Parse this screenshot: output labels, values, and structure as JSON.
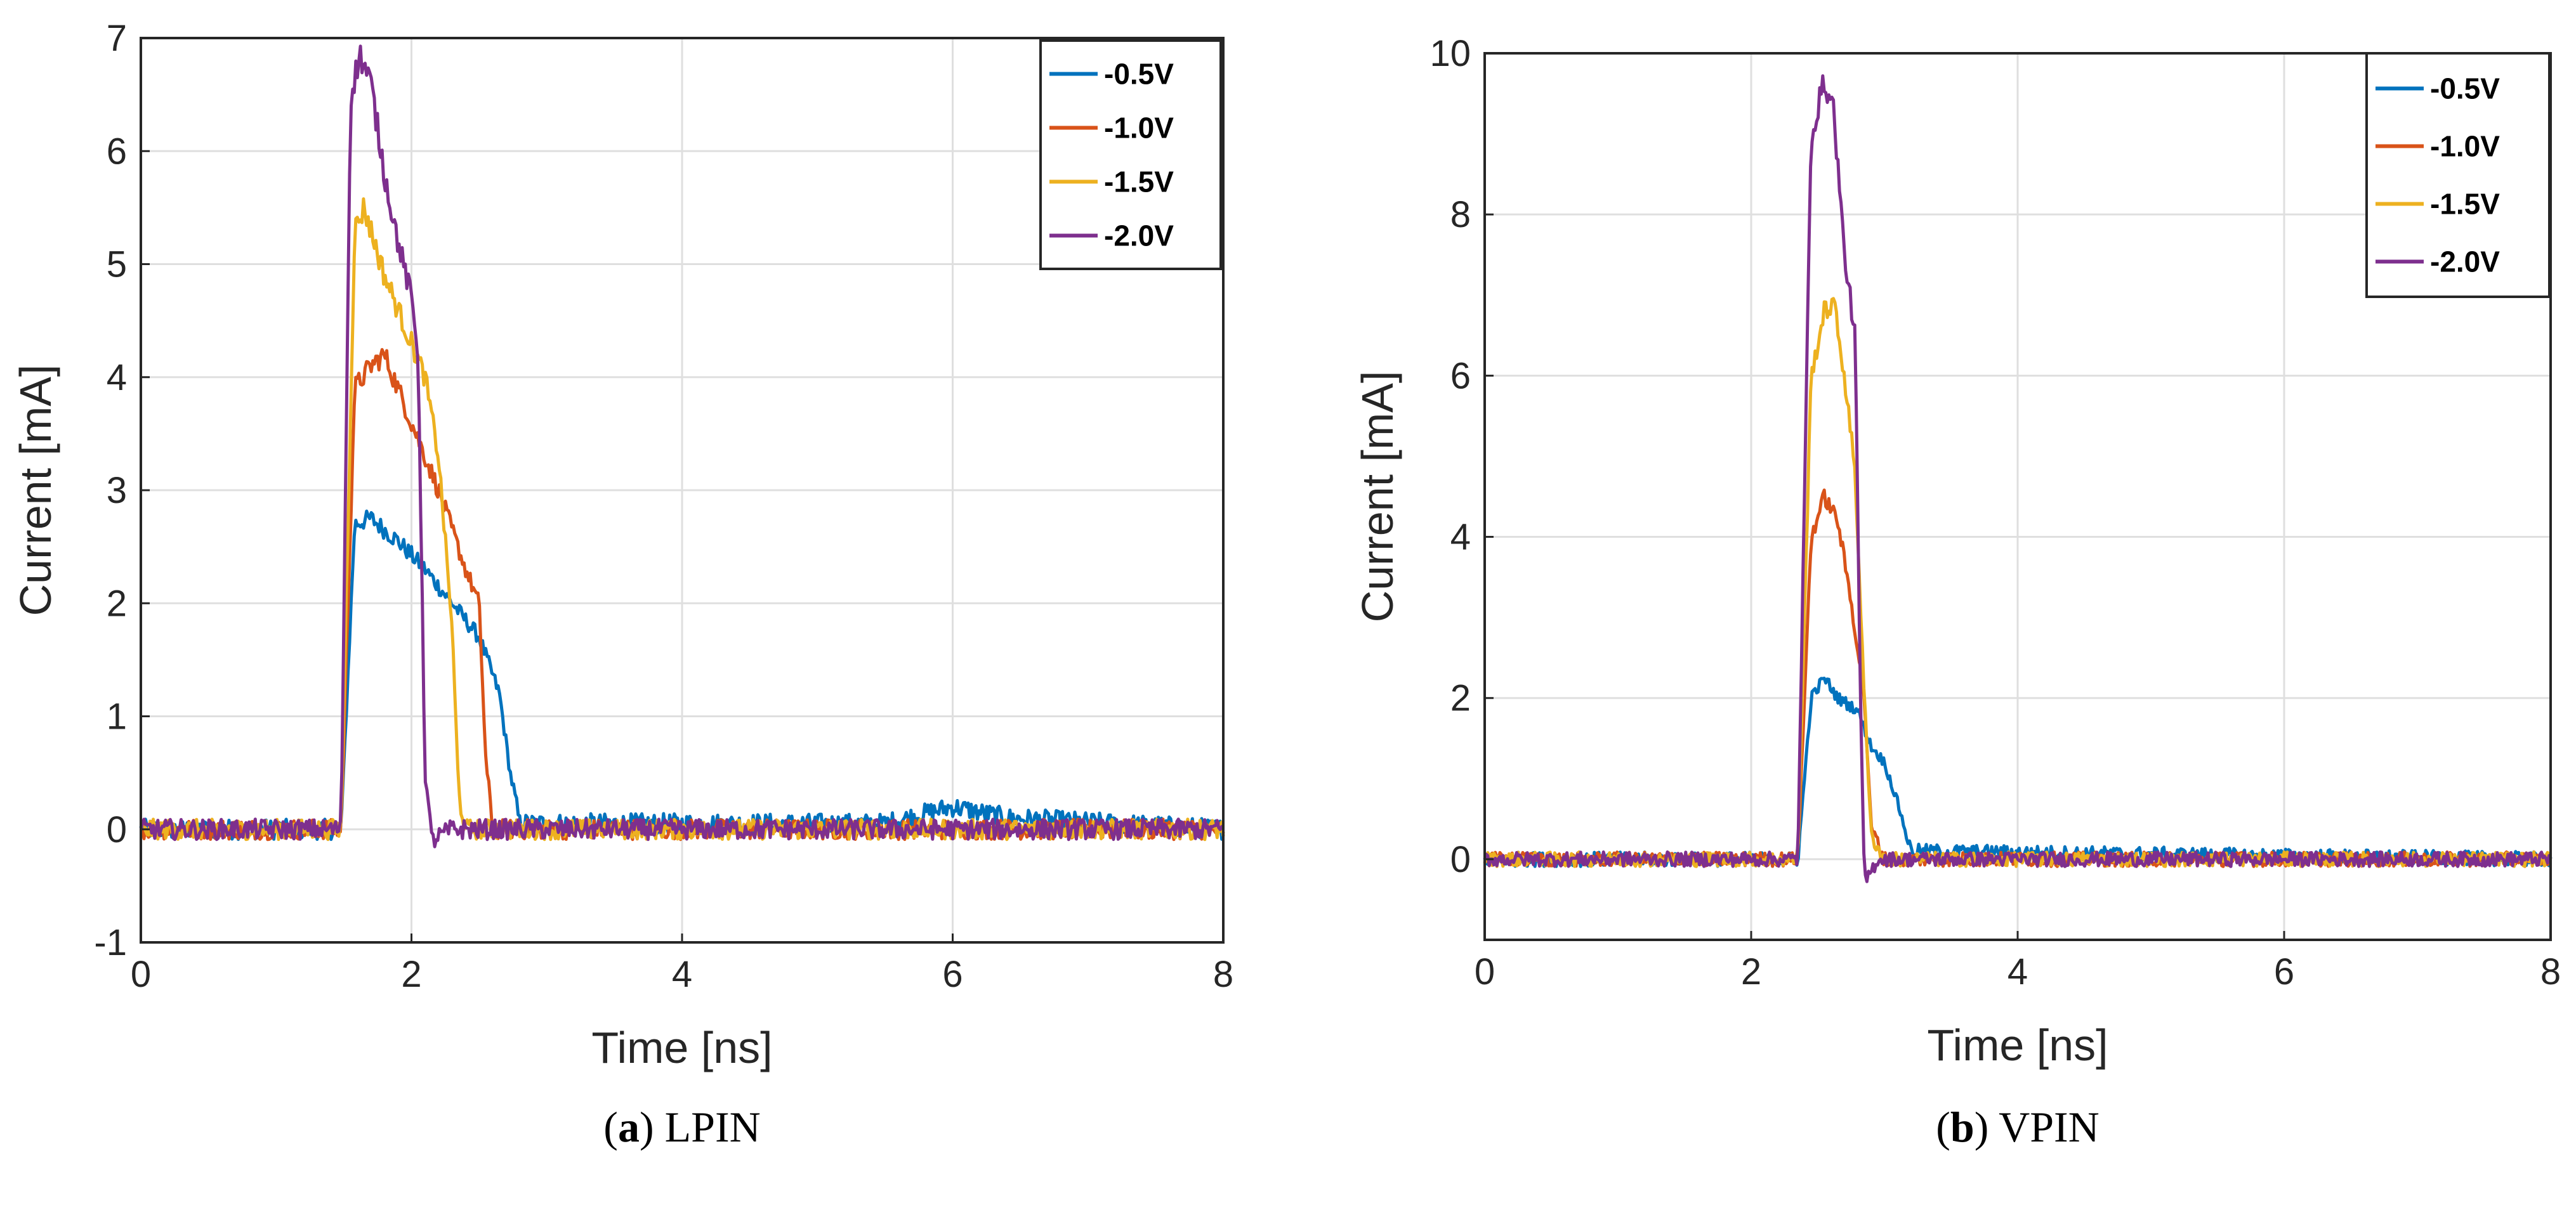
{
  "chart_data": [
    {
      "type": "line",
      "panel_id": "a",
      "caption_label": "a",
      "caption_text": "LPIN",
      "xlabel": "Time [ns]",
      "ylabel": "Current [mA]",
      "xlim": [
        0,
        8
      ],
      "ylim": [
        -1,
        7
      ],
      "xticks": [
        "0",
        "2",
        "4",
        "6",
        "8"
      ],
      "yticks": [
        "-1",
        "0",
        "1",
        "2",
        "3",
        "4",
        "5",
        "6",
        "7"
      ],
      "grid": true,
      "legend_position": "top-right",
      "series": [
        {
          "name": "-0.5V",
          "color": "#0072BD",
          "key_points": [
            [
              0,
              0
            ],
            [
              1.48,
              0
            ],
            [
              1.58,
              2.7
            ],
            [
              1.7,
              2.75
            ],
            [
              1.9,
              2.55
            ],
            [
              2.1,
              2.3
            ],
            [
              2.3,
              2.0
            ],
            [
              2.5,
              1.7
            ],
            [
              2.65,
              1.2
            ],
            [
              2.73,
              0.5
            ],
            [
              2.8,
              0.05
            ],
            [
              5.5,
              0.05
            ],
            [
              6.0,
              0.2
            ],
            [
              6.4,
              0.1
            ],
            [
              8,
              0
            ]
          ]
        },
        {
          "name": "-1.0V",
          "color": "#D95319",
          "key_points": [
            [
              0,
              0
            ],
            [
              1.48,
              0
            ],
            [
              1.58,
              3.9
            ],
            [
              1.7,
              4.1
            ],
            [
              1.8,
              4.2
            ],
            [
              2.0,
              3.6
            ],
            [
              2.2,
              3.0
            ],
            [
              2.4,
              2.3
            ],
            [
              2.5,
              2.0
            ],
            [
              2.55,
              0.6
            ],
            [
              2.6,
              0.0
            ],
            [
              8,
              0
            ]
          ]
        },
        {
          "name": "-1.5V",
          "color": "#EDB120",
          "key_points": [
            [
              0,
              0
            ],
            [
              1.48,
              0
            ],
            [
              1.58,
              5.3
            ],
            [
              1.65,
              5.5
            ],
            [
              1.8,
              4.9
            ],
            [
              2.0,
              4.3
            ],
            [
              2.1,
              4.0
            ],
            [
              2.2,
              3.3
            ],
            [
              2.3,
              1.8
            ],
            [
              2.35,
              0.3
            ],
            [
              2.4,
              0.0
            ],
            [
              8,
              0
            ]
          ]
        },
        {
          "name": "-2.0V",
          "color": "#7E2F8E",
          "key_points": [
            [
              0,
              0
            ],
            [
              1.48,
              0
            ],
            [
              1.55,
              6.5
            ],
            [
              1.62,
              6.85
            ],
            [
              1.7,
              6.6
            ],
            [
              1.8,
              5.8
            ],
            [
              1.9,
              5.2
            ],
            [
              2.0,
              4.7
            ],
            [
              2.05,
              4.2
            ],
            [
              2.1,
              0.5
            ],
            [
              2.15,
              -0.1
            ],
            [
              2.3,
              0.0
            ],
            [
              8,
              0
            ]
          ]
        }
      ]
    },
    {
      "type": "line",
      "panel_id": "b",
      "caption_label": "b",
      "caption_text": "VPIN",
      "xlabel": "Time [ns]",
      "ylabel": "Current [mA]",
      "xlim": [
        0,
        8
      ],
      "ylim": [
        -1,
        10
      ],
      "xticks": [
        "0",
        "2",
        "4",
        "6",
        "8"
      ],
      "yticks": [
        "0",
        "2",
        "4",
        "6",
        "8",
        "10"
      ],
      "grid": true,
      "legend_position": "top-right",
      "series": [
        {
          "name": "-0.5V",
          "color": "#0072BD",
          "key_points": [
            [
              0,
              0
            ],
            [
              2.35,
              0
            ],
            [
              2.45,
              2.0
            ],
            [
              2.55,
              2.25
            ],
            [
              2.65,
              2.0
            ],
            [
              2.8,
              1.85
            ],
            [
              2.9,
              1.4
            ],
            [
              3.0,
              1.2
            ],
            [
              3.1,
              0.7
            ],
            [
              3.2,
              0.1
            ],
            [
              8,
              0
            ]
          ]
        },
        {
          "name": "-1.0V",
          "color": "#D95319",
          "key_points": [
            [
              0,
              0
            ],
            [
              2.35,
              0
            ],
            [
              2.45,
              4.0
            ],
            [
              2.55,
              4.5
            ],
            [
              2.65,
              4.2
            ],
            [
              2.75,
              3.2
            ],
            [
              2.85,
              2.0
            ],
            [
              2.9,
              0.4
            ],
            [
              3.0,
              0.0
            ],
            [
              8,
              0
            ]
          ]
        },
        {
          "name": "-1.5V",
          "color": "#EDB120",
          "key_points": [
            [
              0,
              0
            ],
            [
              2.35,
              0
            ],
            [
              2.45,
              6.0
            ],
            [
              2.55,
              6.8
            ],
            [
              2.62,
              6.9
            ],
            [
              2.7,
              6.0
            ],
            [
              2.78,
              4.8
            ],
            [
              2.85,
              2.0
            ],
            [
              2.9,
              0.3
            ],
            [
              3.0,
              0.0
            ],
            [
              8,
              0
            ]
          ]
        },
        {
          "name": "-2.0V",
          "color": "#7E2F8E",
          "key_points": [
            [
              0,
              0
            ],
            [
              2.35,
              0
            ],
            [
              2.45,
              9.0
            ],
            [
              2.55,
              9.65
            ],
            [
              2.62,
              9.3
            ],
            [
              2.7,
              7.5
            ],
            [
              2.78,
              6.5
            ],
            [
              2.82,
              2.0
            ],
            [
              2.85,
              -0.3
            ],
            [
              2.95,
              0.0
            ],
            [
              8,
              0
            ]
          ]
        }
      ]
    }
  ]
}
